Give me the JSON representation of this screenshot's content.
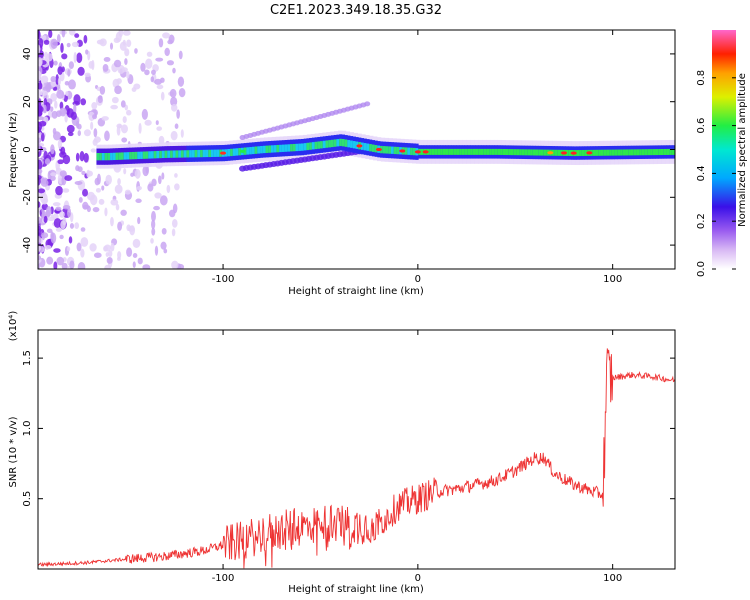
{
  "title": "C2E1.2023.349.18.35.G32",
  "chart_data": [
    {
      "type": "heatmap",
      "xlabel": "Height of straight line (km)",
      "ylabel": "Frequency (Hz)",
      "xlim": [
        -195,
        132
      ],
      "ylim": [
        -50,
        50
      ],
      "xticks": [
        -100,
        0,
        100
      ],
      "yticks": [
        -40,
        -20,
        0,
        20,
        40
      ],
      "colorbar": {
        "label": "Normalized spectral amplitude",
        "range": [
          0,
          1
        ],
        "ticks": [
          0.0,
          0.2,
          0.4,
          0.6,
          0.8
        ]
      },
      "ridge": [
        {
          "x": -160,
          "f": -3
        },
        {
          "x": -130,
          "f": -2
        },
        {
          "x": -100,
          "f": -1.5
        },
        {
          "x": -80,
          "f": 0
        },
        {
          "x": -60,
          "f": 1
        },
        {
          "x": -40,
          "f": 3
        },
        {
          "x": -20,
          "f": 0
        },
        {
          "x": 0,
          "f": -1
        },
        {
          "x": 40,
          "f": -1
        },
        {
          "x": 80,
          "f": -1.5
        },
        {
          "x": 130,
          "f": -1
        }
      ]
    },
    {
      "type": "line",
      "xlabel": "Height of straight line (km)",
      "ylabel": "SNR (10 * v/v)",
      "y_multiplier": "(x10⁴)",
      "xlim": [
        -195,
        132
      ],
      "ylim": [
        0,
        17000
      ],
      "xticks": [
        -100,
        0,
        100
      ],
      "yticks": [
        5000,
        10000,
        15000
      ],
      "ytick_labels": [
        "0.5",
        "1.0",
        "1.5"
      ],
      "color": "#ee3333",
      "x": [
        -195,
        -170,
        -150,
        -130,
        -110,
        -100,
        -90,
        -80,
        -70,
        -60,
        -50,
        -40,
        -30,
        -20,
        -10,
        0,
        10,
        20,
        30,
        40,
        50,
        60,
        65,
        70,
        80,
        90,
        95,
        97,
        100,
        110,
        120,
        132
      ],
      "y": [
        300,
        450,
        700,
        900,
        1300,
        1700,
        2000,
        2500,
        2800,
        3000,
        3200,
        3300,
        3100,
        3200,
        4500,
        5000,
        5500,
        5700,
        6000,
        6300,
        7000,
        7900,
        7900,
        6800,
        6000,
        5500,
        5300,
        13800,
        13600,
        13800,
        13700,
        13400
      ]
    }
  ]
}
